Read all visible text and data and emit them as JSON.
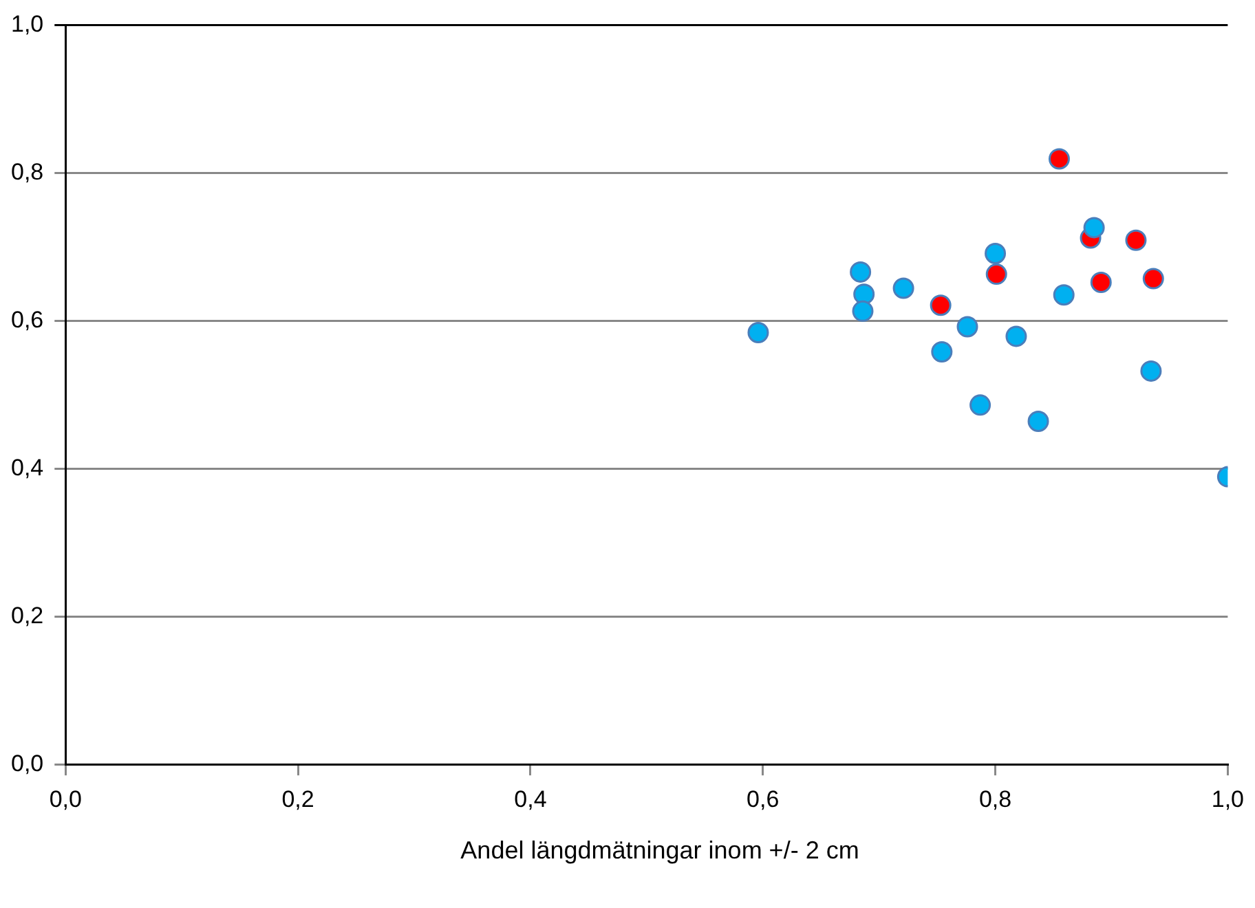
{
  "chart_data": {
    "type": "scatter",
    "xlabel": "Andel längdmätningar inom +/- 2 cm",
    "series": [
      {
        "color": "#00b0f0",
        "x": [
          0.596,
          0.684,
          0.687,
          0.686,
          0.721,
          0.754,
          0.776,
          0.787,
          0.8,
          0.818,
          0.837,
          0.859,
          0.885,
          0.934,
          1.0
        ],
        "values": [
          0.584,
          0.666,
          0.636,
          0.613,
          0.644,
          0.558,
          0.592,
          0.486,
          0.691,
          0.579,
          0.464,
          0.635,
          0.726,
          0.532,
          0.389
        ]
      },
      {
        "color": "#ff0000",
        "x": [
          0.753,
          0.801,
          0.855,
          0.882,
          0.921,
          0.891,
          0.936
        ],
        "values": [
          0.621,
          0.663,
          0.819,
          0.712,
          0.709,
          0.652,
          0.657
        ]
      }
    ],
    "xlim": [
      0,
      1
    ],
    "ylim": [
      0,
      1
    ],
    "xticks": [
      {
        "value": 0,
        "label": "0,0"
      },
      {
        "value": 0.2,
        "label": "0,2"
      },
      {
        "value": 0.4,
        "label": "0,4"
      },
      {
        "value": 0.6,
        "label": "0,6"
      },
      {
        "value": 0.8,
        "label": "0,8"
      },
      {
        "value": 1,
        "label": "1,0"
      }
    ],
    "yticks": [
      {
        "value": 0,
        "label": "0,0"
      },
      {
        "value": 0.2,
        "label": "0,2"
      },
      {
        "value": 0.4,
        "label": "0,4"
      },
      {
        "value": 0.6,
        "label": "0,6"
      },
      {
        "value": 0.8,
        "label": "0,8"
      },
      {
        "value": 1,
        "label": "1,0"
      }
    ],
    "grid": "y",
    "legend": false,
    "marker": "circle"
  }
}
